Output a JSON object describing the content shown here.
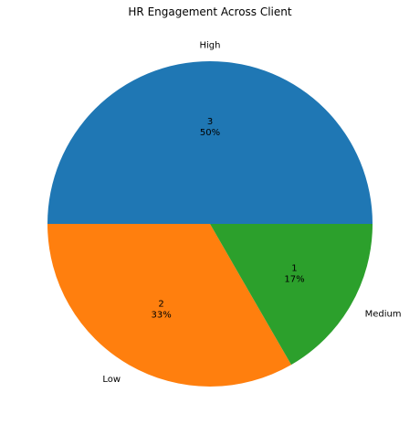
{
  "chart_data": {
    "type": "pie",
    "title": "HR Engagement Across Client",
    "slices": [
      {
        "label": "High",
        "value": 3,
        "percent": "50%",
        "color": "#1f77b4"
      },
      {
        "label": "Low",
        "value": 2,
        "percent": "33%",
        "color": "#ff7f0e"
      },
      {
        "label": "Medium",
        "value": 1,
        "percent": "17%",
        "color": "#2ca02c"
      }
    ],
    "start_angle_deg": 0,
    "direction": "counterclockwise",
    "legend": "none"
  }
}
